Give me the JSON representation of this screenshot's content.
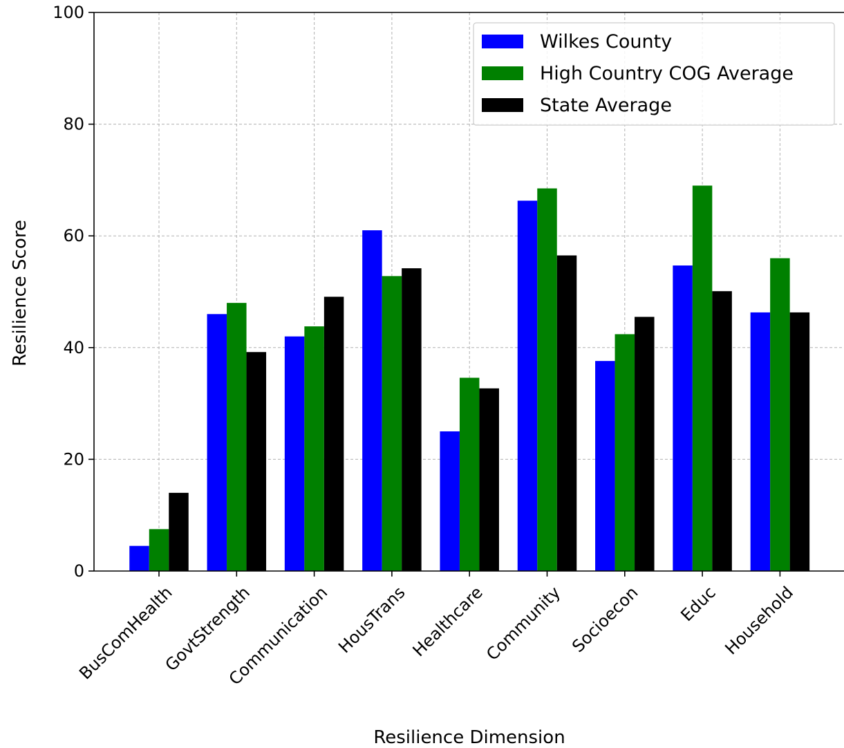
{
  "chart_data": {
    "type": "bar",
    "xlabel": "Resilience Dimension",
    "ylabel": "Resilience Score",
    "ylim": [
      0,
      100
    ],
    "yticks": [
      0,
      20,
      40,
      60,
      80,
      100
    ],
    "grid": true,
    "legend_position": "top-right",
    "categories": [
      "BusComHealth",
      "GovtStrength",
      "Communication",
      "HousTrans",
      "Healthcare",
      "Community",
      "Socioecon",
      "Educ",
      "Household"
    ],
    "series": [
      {
        "name": "Wilkes County",
        "color": "#0000ff",
        "values": [
          4.5,
          46.0,
          42.0,
          61.0,
          25.0,
          66.3,
          37.6,
          54.7,
          46.3
        ]
      },
      {
        "name": "High Country COG Average",
        "color": "#008000",
        "values": [
          7.5,
          48.0,
          43.8,
          52.8,
          34.6,
          68.5,
          42.4,
          69.0,
          56.0
        ]
      },
      {
        "name": "State Average",
        "color": "#000000",
        "values": [
          14.0,
          39.2,
          49.1,
          54.2,
          32.7,
          56.5,
          45.5,
          50.1,
          46.3
        ]
      }
    ]
  }
}
